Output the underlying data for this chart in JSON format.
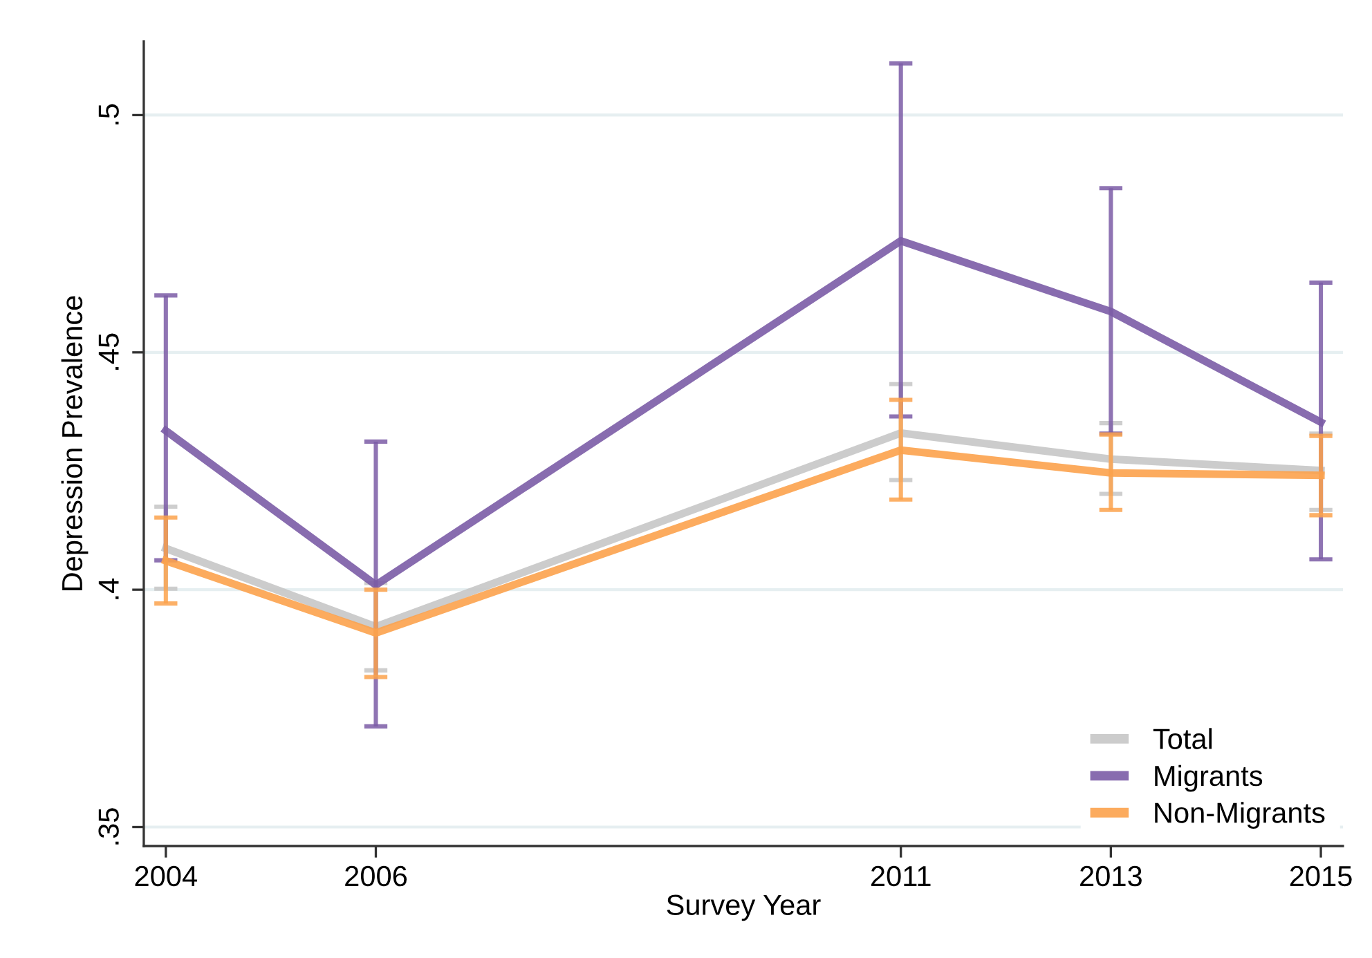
{
  "chart_data": {
    "type": "line",
    "xlabel": "Survey Year",
    "ylabel": "Depression Prevalence",
    "x": [
      2004,
      2006,
      2011,
      2013,
      2015
    ],
    "series": [
      {
        "name": "Total",
        "color": "#c6c6c6",
        "values": [
          0.4087,
          0.3922,
          0.433,
          0.4275,
          0.4251
        ],
        "errors": [
          [
            0.4002,
            0.4175
          ],
          [
            0.383,
            0.4014
          ],
          [
            0.4231,
            0.4433
          ],
          [
            0.4202,
            0.4351
          ],
          [
            0.4168,
            0.4329
          ]
        ]
      },
      {
        "name": "Migrants",
        "color": "#7b5ca6",
        "values": [
          0.4335,
          0.401,
          0.4735,
          0.4586,
          0.4353
        ],
        "errors": [
          [
            0.4062,
            0.462
          ],
          [
            0.3712,
            0.4312
          ],
          [
            0.4365,
            0.5109
          ],
          [
            0.4329,
            0.4846
          ],
          [
            0.4064,
            0.4647
          ]
        ]
      },
      {
        "name": "Non-Migrants",
        "color": "#fca24c",
        "values": [
          0.4061,
          0.3909,
          0.4294,
          0.4246,
          0.4241
        ],
        "errors": [
          [
            0.3971,
            0.4152
          ],
          [
            0.3816,
            0.4
          ],
          [
            0.419,
            0.44
          ],
          [
            0.4168,
            0.4327
          ],
          [
            0.4157,
            0.4324
          ]
        ]
      }
    ],
    "xlim": [
      2003.79,
      2015.21
    ],
    "xticks": [
      2004,
      2006,
      2011,
      2013,
      2015
    ],
    "ylim": [
      0.346,
      0.5155
    ],
    "yticks": [
      {
        "value": 0.35,
        "label": ".35"
      },
      {
        "value": 0.4,
        "label": ".4"
      },
      {
        "value": 0.45,
        "label": ".45"
      },
      {
        "value": 0.5,
        "label": ".5"
      }
    ],
    "grid": "y",
    "legend": "bottom right",
    "line_style": "solid"
  }
}
